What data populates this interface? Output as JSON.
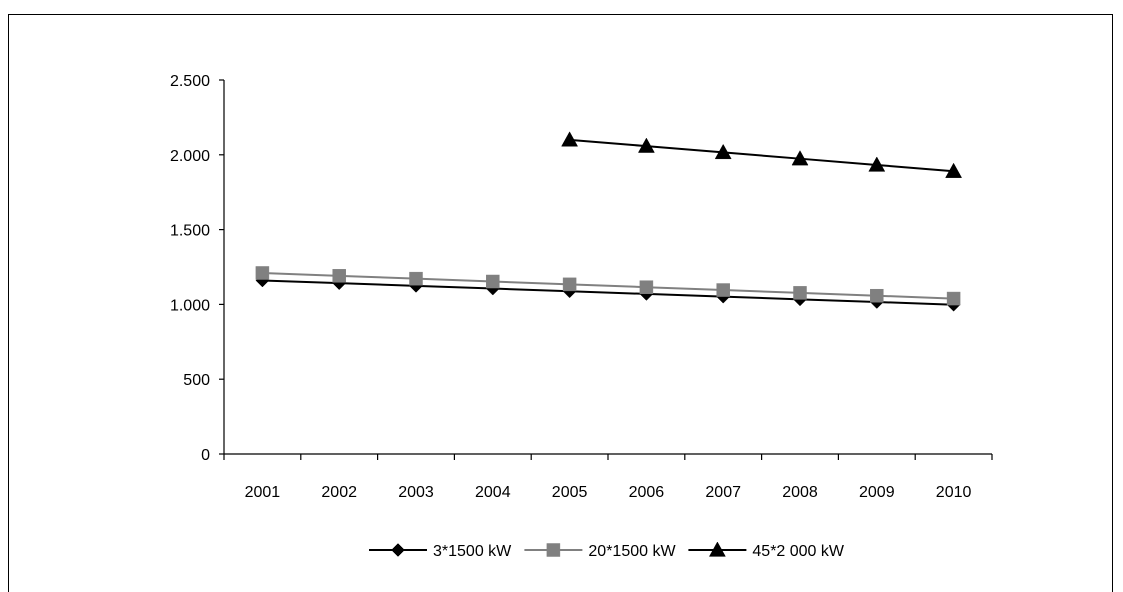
{
  "chart_data": {
    "type": "line",
    "title": "",
    "xlabel": "",
    "ylabel": "",
    "x": [
      "2001",
      "2002",
      "2003",
      "2004",
      "2005",
      "2006",
      "2007",
      "2008",
      "2009",
      "2010"
    ],
    "ylim": [
      0,
      2500
    ],
    "yticks": [
      0,
      500,
      1000,
      1500,
      2000,
      2500
    ],
    "ytick_labels": [
      "0",
      "500",
      "1.000",
      "1.500",
      "2.000",
      "2.500"
    ],
    "grid": false,
    "legend_position": "bottom",
    "series": [
      {
        "name": "3*1500 kW",
        "color": "#000000",
        "marker": "diamond",
        "values": [
          1160,
          1142,
          1124,
          1106,
          1088,
          1070,
          1052,
          1034,
          1016,
          998
        ]
      },
      {
        "name": "20*1500 kW",
        "color": "#808080",
        "marker": "square",
        "values": [
          1210,
          1191,
          1172,
          1153,
          1134,
          1115,
          1096,
          1077,
          1058,
          1039
        ]
      },
      {
        "name": "45*2 000 kW",
        "color": "#000000",
        "marker": "triangle",
        "values": [
          null,
          null,
          null,
          null,
          2100,
          2058,
          2016,
          1974,
          1932,
          1890
        ]
      }
    ]
  }
}
